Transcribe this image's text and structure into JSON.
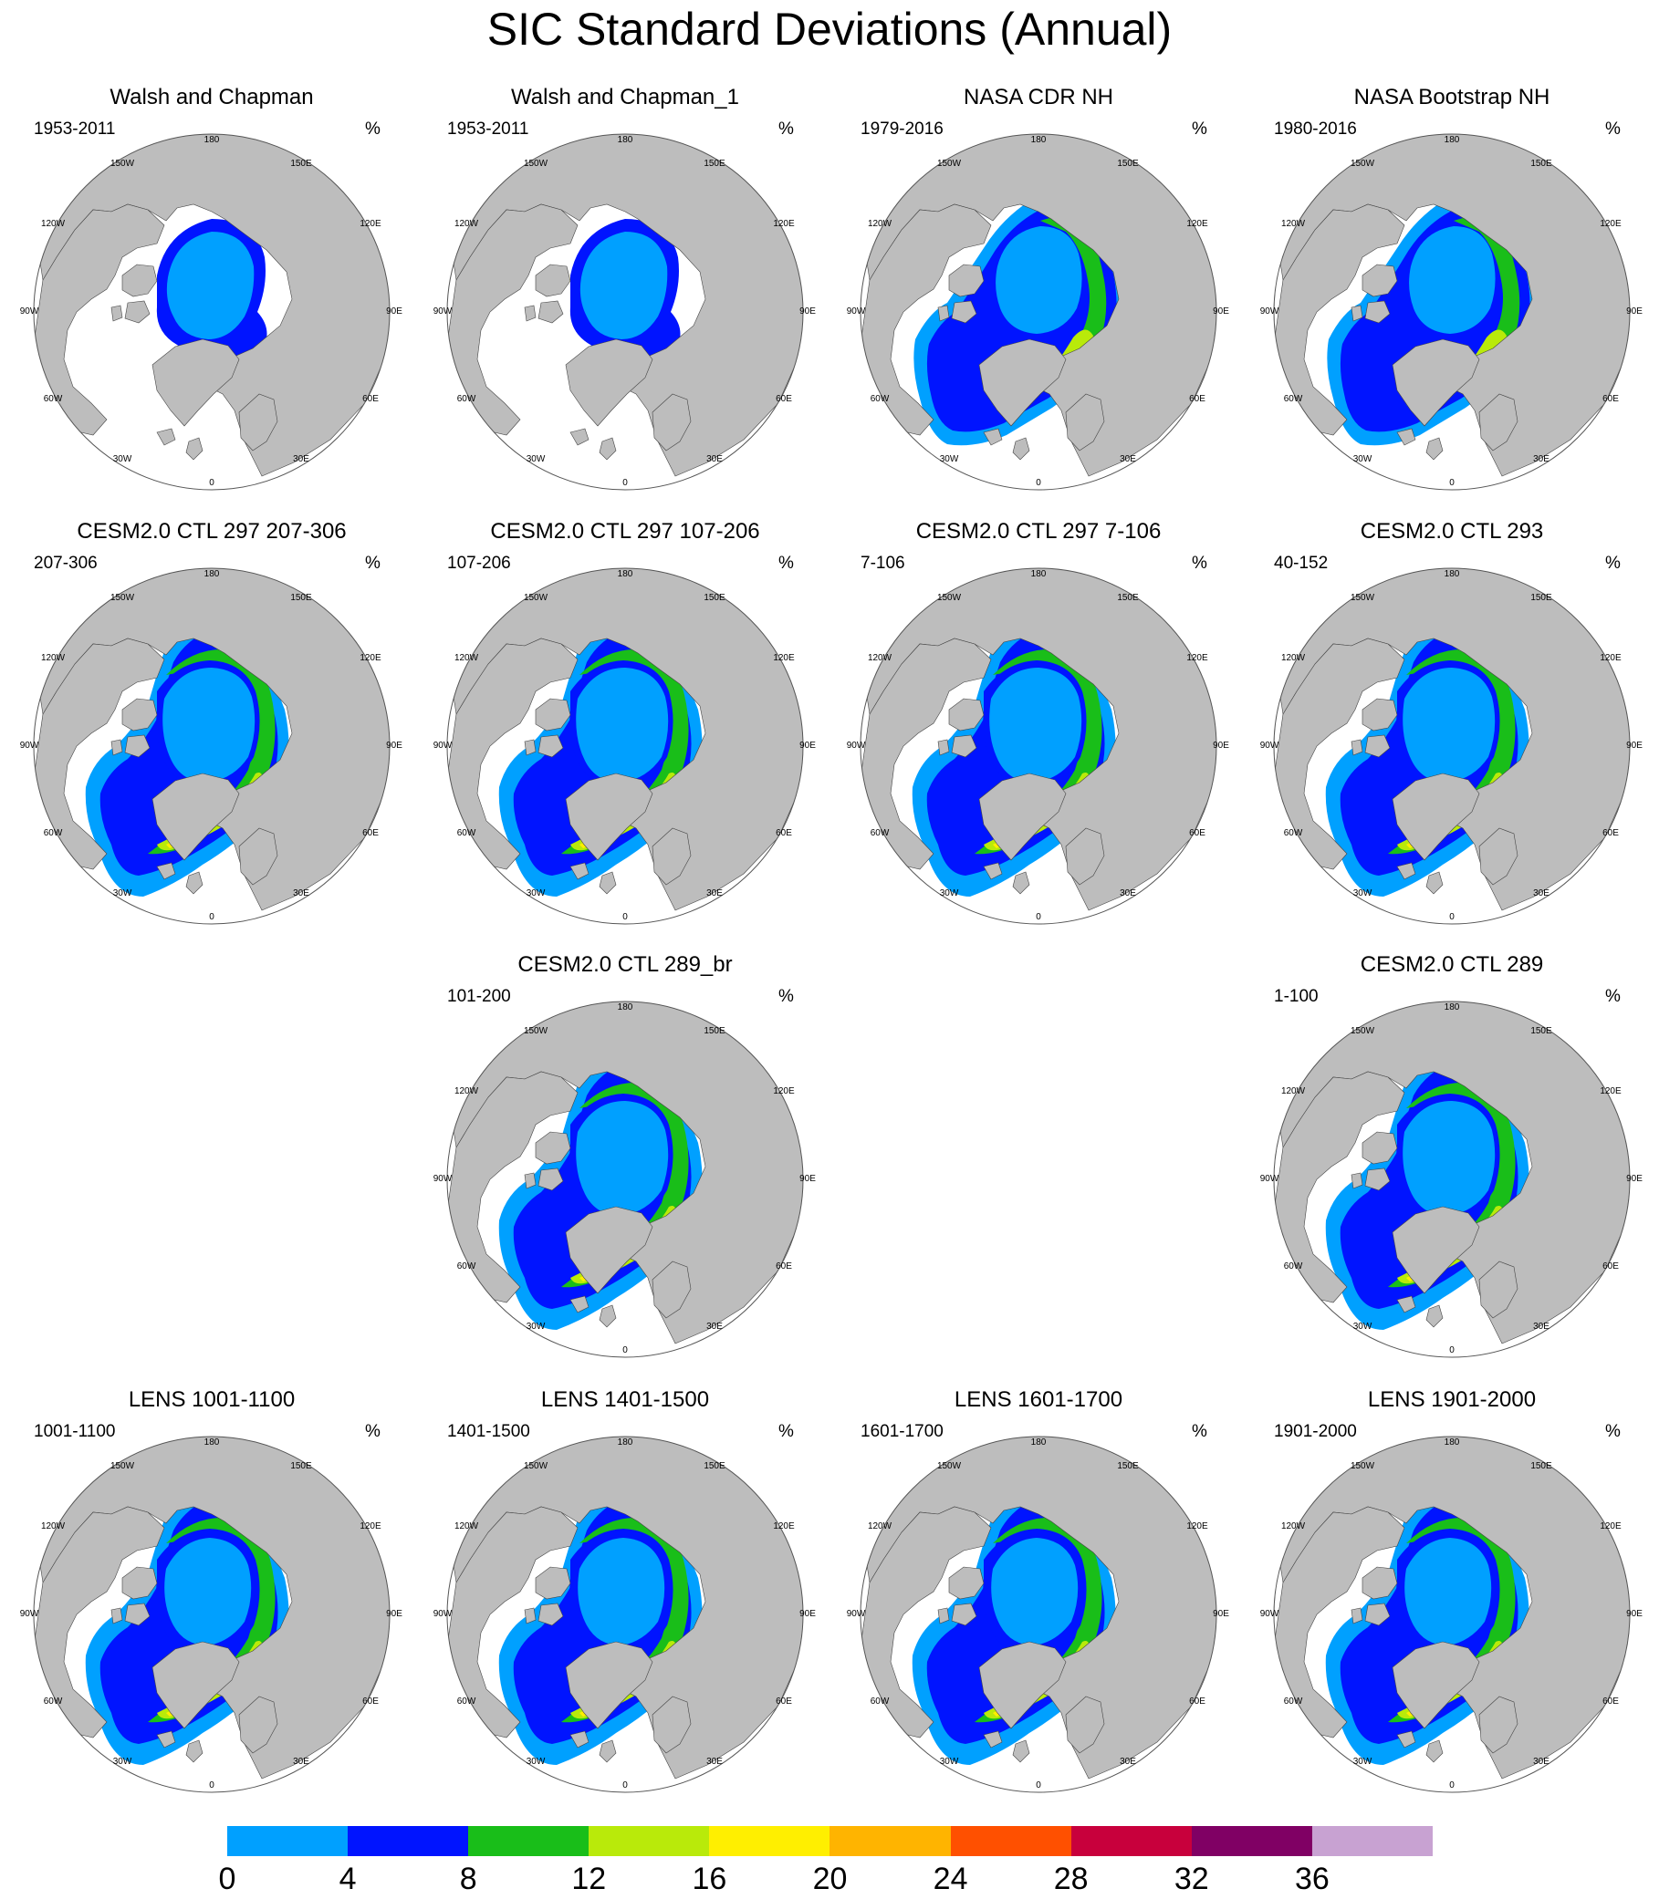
{
  "title": "SIC Standard Deviations (Annual)",
  "units": "%",
  "map_labels": {
    "lon_180": "180",
    "lon_150w": "150W",
    "lon_120w": "120W",
    "lon_90w": "90W",
    "lon_60w": "60W",
    "lon_30w": "30W",
    "lon_0": "0",
    "lon_30e": "30E",
    "lon_60e": "60E",
    "lon_90e": "90E",
    "lon_120e": "120E",
    "lon_150e": "150E"
  },
  "colors": {
    "land": "#bdbdbd",
    "ocean": "#ffffff",
    "outline": "#444444",
    "levels": [
      "#00a0ff",
      "#0014ff",
      "#19be19",
      "#b9ea0a",
      "#ffef00",
      "#ffb400",
      "#ff5000",
      "#c8003c",
      "#800064",
      "#c8a2d2"
    ]
  },
  "colorbar": {
    "ticks": [
      "0",
      "4",
      "8",
      "12",
      "16",
      "20",
      "24",
      "28",
      "32",
      "36"
    ]
  },
  "panels": [
    {
      "title": "Walsh and Chapman",
      "years": "1953-2011",
      "style": "obs"
    },
    {
      "title": "Walsh and Chapman_1",
      "years": "1953-2011",
      "style": "obs"
    },
    {
      "title": "NASA CDR NH",
      "years": "1979-2016",
      "style": "sat"
    },
    {
      "title": "NASA Bootstrap NH",
      "years": "1980-2016",
      "style": "sat"
    },
    {
      "title": "CESM2.0 CTL 297 207-306",
      "years": "207-306",
      "style": "model"
    },
    {
      "title": "CESM2.0 CTL 297 107-206",
      "years": "107-206",
      "style": "model"
    },
    {
      "title": "CESM2.0 CTL 297 7-106",
      "years": "7-106",
      "style": "model"
    },
    {
      "title": "CESM2.0 CTL 293",
      "years": "40-152",
      "style": "model"
    },
    {
      "title": "CESM2.0 CTL 289_br",
      "years": "101-200",
      "style": "model"
    },
    {
      "title": "CESM2.0 CTL 289",
      "years": "1-100",
      "style": "model"
    },
    {
      "title": "LENS 1001-1100",
      "years": "1001-1100",
      "style": "lens"
    },
    {
      "title": "LENS 1401-1500",
      "years": "1401-1500",
      "style": "lens"
    },
    {
      "title": "LENS 1601-1700",
      "years": "1601-1700",
      "style": "lens"
    },
    {
      "title": "LENS 1901-2000",
      "years": "1901-2000",
      "style": "lens"
    }
  ]
}
